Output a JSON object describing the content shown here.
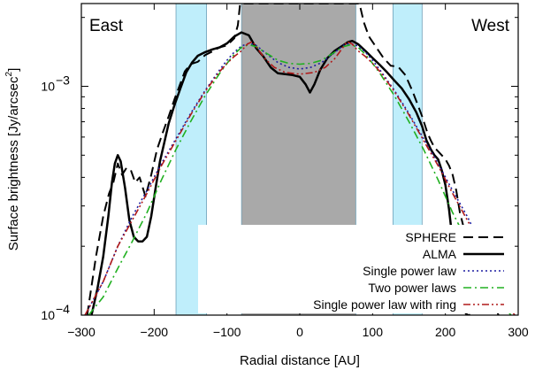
{
  "chart_data": {
    "type": "line",
    "xlabel": "Radial distance [AU]",
    "ylabel": "Surface brightness [Jy/arcsec",
    "ylabel_superscript": "2",
    "ylabel_suffix": "]",
    "xlim": [
      -300,
      300
    ],
    "ylim": [
      0.0001,
      0.0023
    ],
    "yscale": "log",
    "grid": false,
    "legend_position": "bottom-right",
    "x_ticks": [
      -300,
      -200,
      -100,
      0,
      100,
      200,
      300
    ],
    "x_tick_labels": [
      "−300",
      "−200",
      "−100",
      "0",
      "100",
      "200",
      "300"
    ],
    "y_ticks": [
      0.0001,
      0.001
    ],
    "y_tick_labels": [
      {
        "base": "10",
        "exp": "−4"
      },
      {
        "base": "10",
        "exp": "−3"
      }
    ],
    "annotations": {
      "left": "East",
      "right": "West"
    },
    "shaded_regions": [
      {
        "x0": -170,
        "x1": -128,
        "color": "#bfeefb"
      },
      {
        "x0": -80,
        "x1": 77,
        "color": "#a9a9a9"
      },
      {
        "x0": 128,
        "x1": 168,
        "color": "#bfeefb"
      }
    ],
    "series": [
      {
        "name": "SPHERE",
        "color": "#000000",
        "dash": "11,6",
        "width": 2,
        "points": [
          [
            -292,
            0.0001
          ],
          [
            -280,
            0.00018
          ],
          [
            -270,
            0.00027
          ],
          [
            -262,
            0.00034
          ],
          [
            -256,
            0.00038
          ],
          [
            -250,
            0.00046
          ],
          [
            -244,
            0.00041
          ],
          [
            -238,
            0.00044
          ],
          [
            -232,
            0.00043
          ],
          [
            -226,
            0.00038
          ],
          [
            -220,
            0.0004
          ],
          [
            -212,
            0.00033
          ],
          [
            -204,
            0.00041
          ],
          [
            -196,
            0.00053
          ],
          [
            -188,
            0.00063
          ],
          [
            -180,
            0.00074
          ],
          [
            -172,
            0.00088
          ],
          [
            -165,
            0.00101
          ],
          [
            -158,
            0.00116
          ],
          [
            -150,
            0.00125
          ],
          [
            -140,
            0.00128
          ],
          [
            -130,
            0.00137
          ],
          [
            -120,
            0.00142
          ],
          [
            -110,
            0.00148
          ],
          [
            -100,
            0.00151
          ],
          [
            -90,
            0.00162
          ],
          [
            -85,
            0.00185
          ],
          [
            -82,
            0.0023
          ],
          [
            82,
            0.0023
          ],
          [
            88,
            0.0019
          ],
          [
            95,
            0.00165
          ],
          [
            105,
            0.00148
          ],
          [
            115,
            0.00133
          ],
          [
            125,
            0.00123
          ],
          [
            135,
            0.00122
          ],
          [
            145,
            0.00112
          ],
          [
            155,
            0.00095
          ],
          [
            162,
            0.00083
          ],
          [
            168,
            0.00074
          ],
          [
            175,
            0.00063
          ],
          [
            180,
            0.00058
          ],
          [
            185,
            0.00054
          ],
          [
            190,
            0.00052
          ],
          [
            195,
            0.0005
          ],
          [
            200,
            0.00048
          ],
          [
            205,
            0.00045
          ],
          [
            210,
            0.00041
          ],
          [
            215,
            0.00035
          ],
          [
            220,
            0.00028
          ],
          [
            224,
            0.00025
          ],
          [
            228,
            0.00021
          ],
          [
            232,
            0.00017
          ],
          [
            236,
            0.000145
          ],
          [
            240,
            0.00013
          ],
          [
            245,
            0.000125
          ],
          [
            250,
            0.00012
          ],
          [
            255,
            0.000125
          ],
          [
            260,
            0.000135
          ],
          [
            265,
            0.00012
          ],
          [
            270,
            0.000105
          ],
          [
            273,
            0.0001
          ]
        ]
      },
      {
        "name": "ALMA",
        "color": "#000000",
        "dash": "",
        "width": 2.5,
        "points": [
          [
            -286,
            0.0001
          ],
          [
            -278,
            0.00013
          ],
          [
            -270,
            0.00018
          ],
          [
            -263,
            0.00027
          ],
          [
            -258,
            0.00038
          ],
          [
            -254,
            0.00046
          ],
          [
            -250,
            0.0005
          ],
          [
            -246,
            0.00047
          ],
          [
            -240,
            0.00036
          ],
          [
            -234,
            0.00026
          ],
          [
            -228,
            0.00022
          ],
          [
            -222,
            0.00021
          ],
          [
            -216,
            0.00021
          ],
          [
            -210,
            0.00022
          ],
          [
            -204,
            0.00027
          ],
          [
            -198,
            0.00036
          ],
          [
            -192,
            0.00047
          ],
          [
            -186,
            0.00057
          ],
          [
            -180,
            0.00069
          ],
          [
            -172,
            0.00083
          ],
          [
            -164,
            0.00098
          ],
          [
            -156,
            0.00115
          ],
          [
            -148,
            0.00127
          ],
          [
            -140,
            0.00136
          ],
          [
            -130,
            0.00141
          ],
          [
            -120,
            0.00145
          ],
          [
            -110,
            0.00148
          ],
          [
            -100,
            0.00154
          ],
          [
            -90,
            0.00165
          ],
          [
            -80,
            0.00172
          ],
          [
            -70,
            0.00167
          ],
          [
            -60,
            0.00147
          ],
          [
            -50,
            0.00135
          ],
          [
            -40,
            0.00121
          ],
          [
            -30,
            0.00114
          ],
          [
            -20,
            0.00113
          ],
          [
            -10,
            0.00112
          ],
          [
            0,
            0.0011
          ],
          [
            8,
            0.00102
          ],
          [
            14,
            0.00094
          ],
          [
            20,
            0.00102
          ],
          [
            28,
            0.00118
          ],
          [
            38,
            0.00133
          ],
          [
            48,
            0.00143
          ],
          [
            58,
            0.0015
          ],
          [
            66,
            0.00156
          ],
          [
            72,
            0.00158
          ],
          [
            80,
            0.00153
          ],
          [
            90,
            0.00143
          ],
          [
            100,
            0.00133
          ],
          [
            110,
            0.00124
          ],
          [
            120,
            0.00115
          ],
          [
            130,
            0.00106
          ],
          [
            140,
            0.00098
          ],
          [
            150,
            0.00088
          ],
          [
            160,
            0.00077
          ],
          [
            168,
            0.00067
          ],
          [
            174,
            0.00058
          ],
          [
            180,
            0.00053
          ],
          [
            185,
            0.0005
          ],
          [
            190,
            0.00048
          ],
          [
            195,
            0.00043
          ],
          [
            200,
            0.00037
          ],
          [
            205,
            0.00029
          ],
          [
            210,
            0.00021
          ],
          [
            215,
            0.00015
          ],
          [
            220,
            0.00012
          ],
          [
            225,
            0.000105
          ],
          [
            230,
            0.0001
          ],
          [
            234,
            0.0001
          ]
        ]
      },
      {
        "name": "Single power law",
        "color": "#1d1da0",
        "dash": "2,3",
        "width": 1.6,
        "points": [
          [
            -295,
            0.0001
          ],
          [
            -270,
            0.00014
          ],
          [
            -250,
            0.0002
          ],
          [
            -230,
            0.00027
          ],
          [
            -210,
            0.00035
          ],
          [
            -190,
            0.00046
          ],
          [
            -170,
            0.00059
          ],
          [
            -150,
            0.00076
          ],
          [
            -130,
            0.00096
          ],
          [
            -110,
            0.00118
          ],
          [
            -100,
            0.0013
          ],
          [
            -90,
            0.00141
          ],
          [
            -80,
            0.0015
          ],
          [
            -70,
            0.00154
          ],
          [
            -60,
            0.00151
          ],
          [
            -45,
            0.00138
          ],
          [
            -30,
            0.00127
          ],
          [
            -15,
            0.00121
          ],
          [
            0,
            0.00119
          ],
          [
            15,
            0.00121
          ],
          [
            30,
            0.00127
          ],
          [
            45,
            0.00138
          ],
          [
            60,
            0.00151
          ],
          [
            70,
            0.00154
          ],
          [
            80,
            0.0015
          ],
          [
            90,
            0.00141
          ],
          [
            100,
            0.0013
          ],
          [
            110,
            0.00118
          ],
          [
            130,
            0.00096
          ],
          [
            150,
            0.00076
          ],
          [
            170,
            0.00059
          ],
          [
            190,
            0.00046
          ],
          [
            210,
            0.00035
          ],
          [
            230,
            0.00027
          ],
          [
            250,
            0.0002
          ],
          [
            270,
            0.00014
          ],
          [
            295,
            0.0001
          ]
        ]
      },
      {
        "name": "Two power laws",
        "color": "#20b020",
        "dash": "9,4,2,4",
        "width": 1.6,
        "points": [
          [
            -290,
            0.0001
          ],
          [
            -270,
            0.00012
          ],
          [
            -250,
            0.00016
          ],
          [
            -230,
            0.00021
          ],
          [
            -210,
            0.00028
          ],
          [
            -190,
            0.00039
          ],
          [
            -170,
            0.00053
          ],
          [
            -150,
            0.0007
          ],
          [
            -130,
            0.00091
          ],
          [
            -110,
            0.00114
          ],
          [
            -100,
            0.00126
          ],
          [
            -90,
            0.00138
          ],
          [
            -80,
            0.00148
          ],
          [
            -70,
            0.00152
          ],
          [
            -60,
            0.00149
          ],
          [
            -45,
            0.00139
          ],
          [
            -30,
            0.0013
          ],
          [
            -15,
            0.00126
          ],
          [
            0,
            0.00125
          ],
          [
            15,
            0.00126
          ],
          [
            30,
            0.0013
          ],
          [
            45,
            0.00139
          ],
          [
            60,
            0.00149
          ],
          [
            70,
            0.00152
          ],
          [
            80,
            0.00148
          ],
          [
            90,
            0.00138
          ],
          [
            100,
            0.00126
          ],
          [
            110,
            0.00114
          ],
          [
            130,
            0.00091
          ],
          [
            150,
            0.0007
          ],
          [
            170,
            0.00053
          ],
          [
            190,
            0.00039
          ],
          [
            210,
            0.00028
          ],
          [
            230,
            0.00021
          ],
          [
            250,
            0.00016
          ],
          [
            270,
            0.00012
          ],
          [
            290,
            0.0001
          ]
        ]
      },
      {
        "name": "Single power law with ring",
        "color": "#b01a1a",
        "dash": "8,3,2,3,2,3",
        "width": 1.6,
        "points": [
          [
            -295,
            0.0001
          ],
          [
            -270,
            0.00014
          ],
          [
            -250,
            0.0002
          ],
          [
            -230,
            0.00026
          ],
          [
            -210,
            0.00034
          ],
          [
            -190,
            0.00045
          ],
          [
            -170,
            0.00058
          ],
          [
            -150,
            0.00075
          ],
          [
            -130,
            0.00095
          ],
          [
            -110,
            0.00116
          ],
          [
            -100,
            0.00126
          ],
          [
            -90,
            0.00135
          ],
          [
            -80,
            0.00143
          ],
          [
            -72,
            0.00153
          ],
          [
            -65,
            0.00157
          ],
          [
            -58,
            0.00146
          ],
          [
            -48,
            0.00132
          ],
          [
            -35,
            0.00121
          ],
          [
            -20,
            0.00115
          ],
          [
            0,
            0.00113
          ],
          [
            20,
            0.00115
          ],
          [
            35,
            0.00121
          ],
          [
            48,
            0.00132
          ],
          [
            58,
            0.00146
          ],
          [
            65,
            0.00157
          ],
          [
            72,
            0.00153
          ],
          [
            80,
            0.00143
          ],
          [
            90,
            0.00135
          ],
          [
            100,
            0.00126
          ],
          [
            110,
            0.00116
          ],
          [
            130,
            0.00095
          ],
          [
            150,
            0.00075
          ],
          [
            170,
            0.00058
          ],
          [
            190,
            0.00045
          ],
          [
            210,
            0.00034
          ],
          [
            230,
            0.00026
          ],
          [
            250,
            0.0002
          ],
          [
            270,
            0.00014
          ],
          [
            295,
            0.0001
          ]
        ]
      }
    ]
  }
}
